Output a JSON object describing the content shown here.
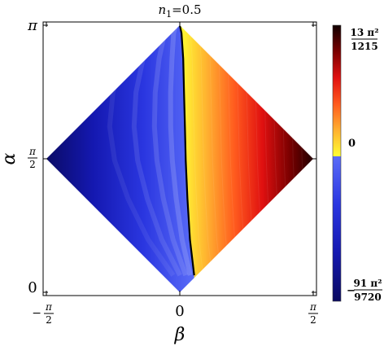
{
  "chart_data": {
    "type": "heatmap",
    "title": {
      "n": "n",
      "sub": "1",
      "rest": "=0.5"
    },
    "xlabel": "β",
    "ylabel": "α",
    "xlim": [
      -1.5708,
      1.5708
    ],
    "ylim": [
      0,
      3.1416
    ],
    "domain_shape": "diamond: |β| + |α − π/2| ≤ π/2",
    "x_ticks": [
      {
        "value": -1.5708,
        "sign": "−",
        "num": "π",
        "den": "2"
      },
      {
        "value": 0,
        "sign": "",
        "num": "0",
        "den": ""
      },
      {
        "value": 1.5708,
        "sign": "",
        "num": "π",
        "den": "2"
      }
    ],
    "y_ticks": [
      {
        "value": 0,
        "num": "0",
        "den": ""
      },
      {
        "value": 1.5708,
        "num": "π",
        "den": "2"
      },
      {
        "value": 3.1416,
        "num": "π",
        "den": ""
      }
    ],
    "zero_contour": [
      {
        "beta": 0.0,
        "alpha": 3.1416
      },
      {
        "beta": 0.02,
        "alpha": 3.05
      },
      {
        "beta": 0.04,
        "alpha": 2.75
      },
      {
        "beta": 0.05,
        "alpha": 2.35
      },
      {
        "beta": 0.06,
        "alpha": 1.95
      },
      {
        "beta": 0.07,
        "alpha": 1.55
      },
      {
        "beta": 0.09,
        "alpha": 1.1
      },
      {
        "beta": 0.12,
        "alpha": 0.62
      },
      {
        "beta": 0.17,
        "alpha": 0.2
      }
    ],
    "colorbar": {
      "max_label": {
        "sign": "",
        "num": "13 π²",
        "den": "1215"
      },
      "zero_label": "0",
      "min_label": {
        "sign": "−",
        "num": "91 π²",
        "den": "9720"
      },
      "max_value": 0.1056,
      "min_value": -0.0924,
      "positive_colors": [
        "#ffff33",
        "#ffb030",
        "#ff5a1e",
        "#e01010",
        "#7a0000",
        "#100000"
      ],
      "negative_colors": [
        "#5a6cf8",
        "#2a36e0",
        "#1418b0",
        "#0a0a60"
      ]
    }
  }
}
